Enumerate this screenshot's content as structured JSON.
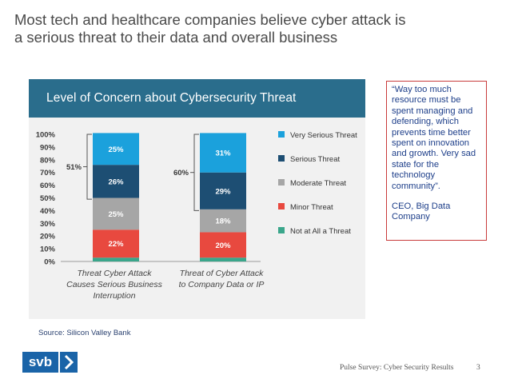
{
  "slide": {
    "title_line1": "Most tech and healthcare companies believe cyber attack is",
    "title_line2": "a serious threat to their data and overall business",
    "source": "Source: Silicon Valley Bank",
    "footer": "Pulse Survey: Cyber Security Results",
    "page_number": "3",
    "logo_text": "svb",
    "logo_icon": "chevron-right-icon"
  },
  "quote": {
    "text": "“Way too much resource must be spent managing and defending, which prevents time better spent on innovation and growth. Very sad state for the technology community”.",
    "attribution": "CEO, Big Data Company"
  },
  "colors": {
    "header": "#2a6d8c",
    "very_serious": "#1ba1dc",
    "serious": "#1d4e73",
    "moderate": "#a6a6a6",
    "minor": "#e8493f",
    "not_at_all": "#3aa68b",
    "quote_border": "#c93b3b",
    "quote_text": "#1e3f8a"
  },
  "chart_data": {
    "type": "bar",
    "stacked": true,
    "title": "Level of Concern about Cybersecurity Threat",
    "categories": [
      [
        "Threat Cyber Attack",
        "Causes Serious Business",
        "Interruption"
      ],
      [
        "Threat of Cyber Attack",
        "to Company Data or IP"
      ]
    ],
    "series": [
      {
        "name": "Not at All a Threat",
        "values": [
          3,
          3
        ],
        "labels": [
          "",
          ""
        ],
        "color": "#3aa68b"
      },
      {
        "name": "Minor Threat",
        "values": [
          22,
          20
        ],
        "labels": [
          "22%",
          "20%"
        ],
        "color": "#e8493f"
      },
      {
        "name": "Moderate Threat",
        "values": [
          25,
          18
        ],
        "labels": [
          "25%",
          "18%"
        ],
        "color": "#a6a6a6"
      },
      {
        "name": "Serious Threat",
        "values": [
          26,
          29
        ],
        "labels": [
          "26%",
          "29%"
        ],
        "color": "#1d4e73"
      },
      {
        "name": "Very Serious Threat",
        "values": [
          25,
          31
        ],
        "labels": [
          "25%",
          "31%"
        ],
        "color": "#1ba1dc"
      }
    ],
    "legend_order": [
      "Very Serious Threat",
      "Serious Threat",
      "Moderate Threat",
      "Minor Threat",
      "Not at All a Threat"
    ],
    "legend_position": "right",
    "brackets": [
      "51%",
      "60%"
    ],
    "yticks": [
      "0%",
      "10%",
      "20%",
      "30%",
      "40%",
      "50%",
      "60%",
      "70%",
      "80%",
      "90%",
      "100%"
    ],
    "ylim": [
      0,
      100
    ],
    "grid": false
  }
}
